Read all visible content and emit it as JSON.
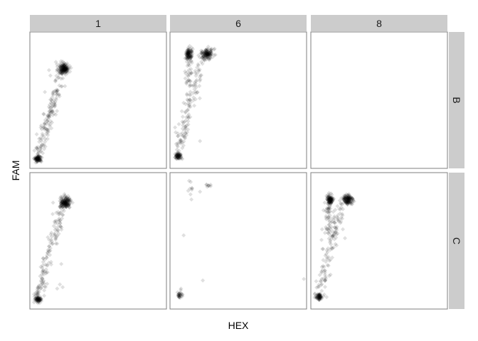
{
  "chart_data": {
    "type": "scatter",
    "title": "",
    "xlabel": "HEX",
    "ylabel": "FAM",
    "facet_cols": [
      "1",
      "6",
      "8"
    ],
    "facet_rows": [
      "B",
      "C"
    ],
    "x_ticks": "none",
    "y_ticks": "none",
    "grid": false,
    "point_color": "#000000",
    "point_alpha": 0.12,
    "strip_fill": "#cccccc",
    "panel_border": "#7f7f7f",
    "xlim": [
      0,
      1
    ],
    "ylim": [
      0,
      1
    ],
    "panels": [
      {
        "row": "B",
        "col": "1",
        "empty": false,
        "clusters": [
          {
            "x": 0.06,
            "y": 0.07,
            "sx": 0.012,
            "sy": 0.012,
            "n": 90
          },
          {
            "x": 0.25,
            "y": 0.73,
            "sx": 0.02,
            "sy": 0.02,
            "n": 170
          }
        ],
        "trails": [
          {
            "from": [
              0.06,
              0.09
            ],
            "to": [
              0.23,
              0.7
            ],
            "n": 140,
            "jitter": 0.018
          }
        ],
        "points": [
          [
            0.05,
            0.25
          ],
          [
            0.14,
            0.72
          ],
          [
            0.19,
            0.78
          ],
          [
            0.11,
            0.56
          ],
          [
            0.15,
            0.68
          ],
          [
            0.1,
            0.4
          ],
          [
            0.08,
            0.3
          ]
        ]
      },
      {
        "row": "B",
        "col": "6",
        "empty": false,
        "clusters": [
          {
            "x": 0.06,
            "y": 0.09,
            "sx": 0.012,
            "sy": 0.012,
            "n": 70
          },
          {
            "x": 0.14,
            "y": 0.84,
            "sx": 0.012,
            "sy": 0.02,
            "n": 110
          },
          {
            "x": 0.27,
            "y": 0.84,
            "sx": 0.022,
            "sy": 0.02,
            "n": 140
          }
        ],
        "trails": [
          {
            "from": [
              0.06,
              0.12
            ],
            "to": [
              0.22,
              0.78
            ],
            "n": 120,
            "jitter": 0.02
          },
          {
            "from": [
              0.14,
              0.8
            ],
            "to": [
              0.12,
              0.6
            ],
            "n": 30,
            "jitter": 0.015
          }
        ],
        "points": [
          [
            0.22,
            0.2
          ],
          [
            0.11,
            0.22
          ],
          [
            0.09,
            0.19
          ],
          [
            0.12,
            0.63
          ],
          [
            0.1,
            0.48
          ]
        ]
      },
      {
        "row": "B",
        "col": "8",
        "empty": true,
        "clusters": [],
        "trails": [],
        "points": []
      },
      {
        "row": "C",
        "col": "1",
        "empty": false,
        "clusters": [
          {
            "x": 0.06,
            "y": 0.07,
            "sx": 0.012,
            "sy": 0.012,
            "n": 70
          },
          {
            "x": 0.26,
            "y": 0.78,
            "sx": 0.02,
            "sy": 0.02,
            "n": 170
          }
        ],
        "trails": [
          {
            "from": [
              0.06,
              0.09
            ],
            "to": [
              0.23,
              0.74
            ],
            "n": 130,
            "jitter": 0.018
          }
        ],
        "points": [
          [
            0.23,
            0.33
          ],
          [
            0.22,
            0.18
          ],
          [
            0.2,
            0.15
          ],
          [
            0.24,
            0.16
          ],
          [
            0.18,
            0.64
          ],
          [
            0.17,
            0.78
          ]
        ]
      },
      {
        "row": "C",
        "col": "6",
        "empty": false,
        "clusters": [
          {
            "x": 0.07,
            "y": 0.1,
            "sx": 0.012,
            "sy": 0.012,
            "n": 30
          },
          {
            "x": 0.15,
            "y": 0.88,
            "sx": 0.012,
            "sy": 0.025,
            "n": 8
          },
          {
            "x": 0.29,
            "y": 0.9,
            "sx": 0.012,
            "sy": 0.012,
            "n": 8
          }
        ],
        "trails": [],
        "points": [
          [
            0.1,
            0.54
          ],
          [
            0.24,
            0.21
          ],
          [
            0.98,
            0.22
          ],
          [
            0.08,
            0.15
          ],
          [
            0.22,
            0.86
          ],
          [
            0.14,
            0.94
          ]
        ]
      },
      {
        "row": "C",
        "col": "8",
        "empty": false,
        "clusters": [
          {
            "x": 0.06,
            "y": 0.09,
            "sx": 0.012,
            "sy": 0.012,
            "n": 70
          },
          {
            "x": 0.14,
            "y": 0.8,
            "sx": 0.012,
            "sy": 0.02,
            "n": 110
          },
          {
            "x": 0.27,
            "y": 0.8,
            "sx": 0.02,
            "sy": 0.02,
            "n": 140
          }
        ],
        "trails": [
          {
            "from": [
              0.06,
              0.12
            ],
            "to": [
              0.22,
              0.76
            ],
            "n": 120,
            "jitter": 0.02
          },
          {
            "from": [
              0.14,
              0.76
            ],
            "to": [
              0.12,
              0.56
            ],
            "n": 40,
            "jitter": 0.015
          }
        ],
        "points": [
          [
            0.25,
            0.52
          ],
          [
            0.09,
            0.44
          ],
          [
            0.11,
            0.6
          ]
        ]
      }
    ]
  }
}
